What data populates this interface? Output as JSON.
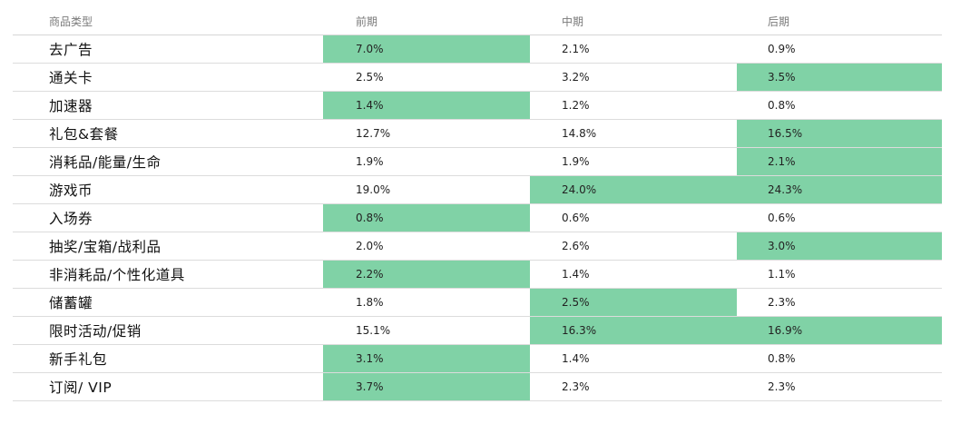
{
  "chart_data": {
    "type": "table",
    "columns": [
      "商品类型",
      "前期",
      "中期",
      "后期"
    ],
    "highlight_color": "#80d2a6",
    "rows": [
      {
        "category": "去广告",
        "values": [
          "7.0%",
          "2.1%",
          "0.9%"
        ],
        "highlight": [
          true,
          false,
          false
        ]
      },
      {
        "category": "通关卡",
        "values": [
          "2.5%",
          "3.2%",
          "3.5%"
        ],
        "highlight": [
          false,
          false,
          true
        ]
      },
      {
        "category": "加速器",
        "values": [
          "1.4%",
          "1.2%",
          "0.8%"
        ],
        "highlight": [
          true,
          false,
          false
        ]
      },
      {
        "category": "礼包&套餐",
        "values": [
          "12.7%",
          "14.8%",
          "16.5%"
        ],
        "highlight": [
          false,
          false,
          true
        ]
      },
      {
        "category": "消耗品/能量/生命",
        "values": [
          "1.9%",
          "1.9%",
          "2.1%"
        ],
        "highlight": [
          false,
          false,
          true
        ]
      },
      {
        "category": "游戏币",
        "values": [
          "19.0%",
          "24.0%",
          "24.3%"
        ],
        "highlight": [
          false,
          true,
          true
        ]
      },
      {
        "category": "入场券",
        "values": [
          "0.8%",
          "0.6%",
          "0.6%"
        ],
        "highlight": [
          true,
          false,
          false
        ]
      },
      {
        "category": "抽奖/宝箱/战利品",
        "values": [
          "2.0%",
          "2.6%",
          "3.0%"
        ],
        "highlight": [
          false,
          false,
          true
        ]
      },
      {
        "category": "非消耗品/个性化道具",
        "values": [
          "2.2%",
          "1.4%",
          "1.1%"
        ],
        "highlight": [
          true,
          false,
          false
        ]
      },
      {
        "category": "储蓄罐",
        "values": [
          "1.8%",
          "2.5%",
          "2.3%"
        ],
        "highlight": [
          false,
          true,
          false
        ]
      },
      {
        "category": "限时活动/促销",
        "values": [
          "15.1%",
          "16.3%",
          "16.9%"
        ],
        "highlight": [
          false,
          true,
          true
        ]
      },
      {
        "category": "新手礼包",
        "values": [
          "3.1%",
          "1.4%",
          "0.8%"
        ],
        "highlight": [
          true,
          false,
          false
        ]
      },
      {
        "category": "订阅/ VIP",
        "values": [
          "3.7%",
          "2.3%",
          "2.3%"
        ],
        "highlight": [
          true,
          false,
          false
        ]
      }
    ]
  }
}
